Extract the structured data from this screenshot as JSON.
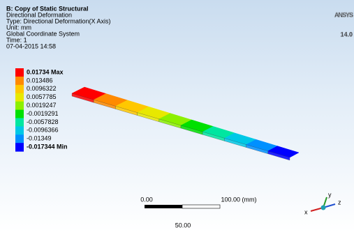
{
  "header": {
    "title": "B: Copy of Static Structural",
    "lines": [
      "Directional Deformation",
      "Type: Directional Deformation(X Axis)",
      "Unit: mm",
      "Global Coordinate System",
      "Time: 1",
      "07-04-2015 14:58"
    ]
  },
  "legend": {
    "labels": [
      "0.01734 Max",
      "0.013486",
      "0.0096322",
      "0.0057785",
      "0.0019247",
      "-0.0019291",
      "-0.0057828",
      "-0.0096366",
      "-0.01349",
      "-0.017344 Min"
    ],
    "colors": [
      "#ff0000",
      "#ff8a00",
      "#ffc800",
      "#e8e800",
      "#8cf000",
      "#00e000",
      "#00e6a0",
      "#00c8e6",
      "#0090ff",
      "#0000ff"
    ]
  },
  "scale": {
    "left": "0.00",
    "right": "100.00 (mm)",
    "middle": "50.00"
  },
  "logo": {
    "brand": "ANSYS",
    "version": "14.0"
  },
  "triad": {
    "x": "x",
    "y": "y",
    "z": "z"
  }
}
